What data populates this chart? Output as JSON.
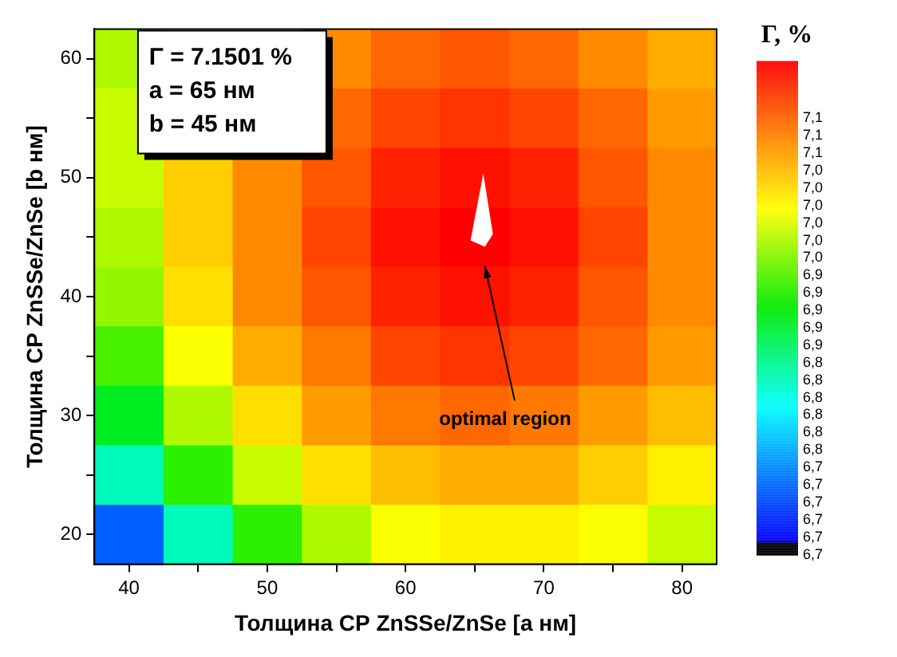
{
  "chart_data": {
    "type": "heatmap",
    "xlabel": "Толщина СР ZnSSe/ZnSe [а нм]",
    "ylabel": "Толщина СР ZnSSe/ZnSe [b нм]",
    "clabel": "Γ, %",
    "categories": [
      "40",
      null,
      "50",
      null,
      "60",
      null,
      "70",
      null,
      "80"
    ],
    "y_categories": [
      "60",
      null,
      "50",
      null,
      "40",
      null,
      "30",
      null,
      "20"
    ],
    "cells": [
      [
        6.97,
        null,
        null,
        7.07,
        7.09,
        7.1,
        7.09,
        7.07,
        7.05
      ],
      [
        6.98,
        null,
        null,
        7.09,
        7.11,
        7.12,
        7.11,
        7.09,
        7.06
      ],
      [
        6.98,
        7.03,
        7.07,
        7.1,
        7.13,
        7.14,
        7.13,
        7.1,
        7.07
      ],
      [
        6.97,
        7.03,
        7.07,
        7.11,
        7.14,
        7.15,
        7.14,
        7.11,
        7.07
      ],
      [
        6.96,
        7.02,
        7.07,
        7.1,
        7.13,
        7.14,
        7.13,
        7.1,
        7.07
      ],
      [
        6.93,
        7.0,
        7.05,
        7.08,
        7.11,
        7.12,
        7.11,
        7.09,
        7.06
      ],
      [
        6.89,
        6.97,
        7.02,
        7.06,
        7.08,
        7.09,
        7.08,
        7.06,
        7.04
      ],
      [
        6.83,
        6.92,
        6.98,
        7.02,
        7.04,
        7.05,
        7.05,
        7.03,
        7.01
      ],
      [
        6.72,
        6.83,
        6.92,
        6.97,
        7.0,
        7.01,
        7.01,
        7.0,
        6.98
      ]
    ],
    "clim": [
      6.655,
      7.15
    ],
    "cticks": [
      {
        "value": 6.655,
        "label": "6,7"
      },
      {
        "value": 6.6725,
        "label": "6,7"
      },
      {
        "value": 6.69,
        "label": "6,7"
      },
      {
        "value": 6.7075,
        "label": "6,7"
      },
      {
        "value": 6.725,
        "label": "6,7"
      },
      {
        "value": 6.7425,
        "label": "6,7"
      },
      {
        "value": 6.76,
        "label": "6,8"
      },
      {
        "value": 6.7775,
        "label": "6,8"
      },
      {
        "value": 6.795,
        "label": "6,8"
      },
      {
        "value": 6.8125,
        "label": "6,8"
      },
      {
        "value": 6.83,
        "label": "6,8"
      },
      {
        "value": 6.8475,
        "label": "6,8"
      },
      {
        "value": 6.865,
        "label": "6,9"
      },
      {
        "value": 6.8825,
        "label": "6,9"
      },
      {
        "value": 6.9,
        "label": "6,9"
      },
      {
        "value": 6.9175,
        "label": "6,9"
      },
      {
        "value": 6.935,
        "label": "6,9"
      },
      {
        "value": 6.9525,
        "label": "7,0"
      },
      {
        "value": 6.97,
        "label": "7,0"
      },
      {
        "value": 6.9875,
        "label": "7,0"
      },
      {
        "value": 7.005,
        "label": "7,0"
      },
      {
        "value": 7.0225,
        "label": "7,0"
      },
      {
        "value": 7.04,
        "label": "7,0"
      },
      {
        "value": 7.0575,
        "label": "7,1"
      },
      {
        "value": 7.075,
        "label": "7,1"
      },
      {
        "value": 7.0925,
        "label": "7,1"
      }
    ],
    "annotations": [
      "Γ = 7.1501 %",
      "a = 65 нм",
      "b = 45 нм",
      "optimal region"
    ]
  }
}
